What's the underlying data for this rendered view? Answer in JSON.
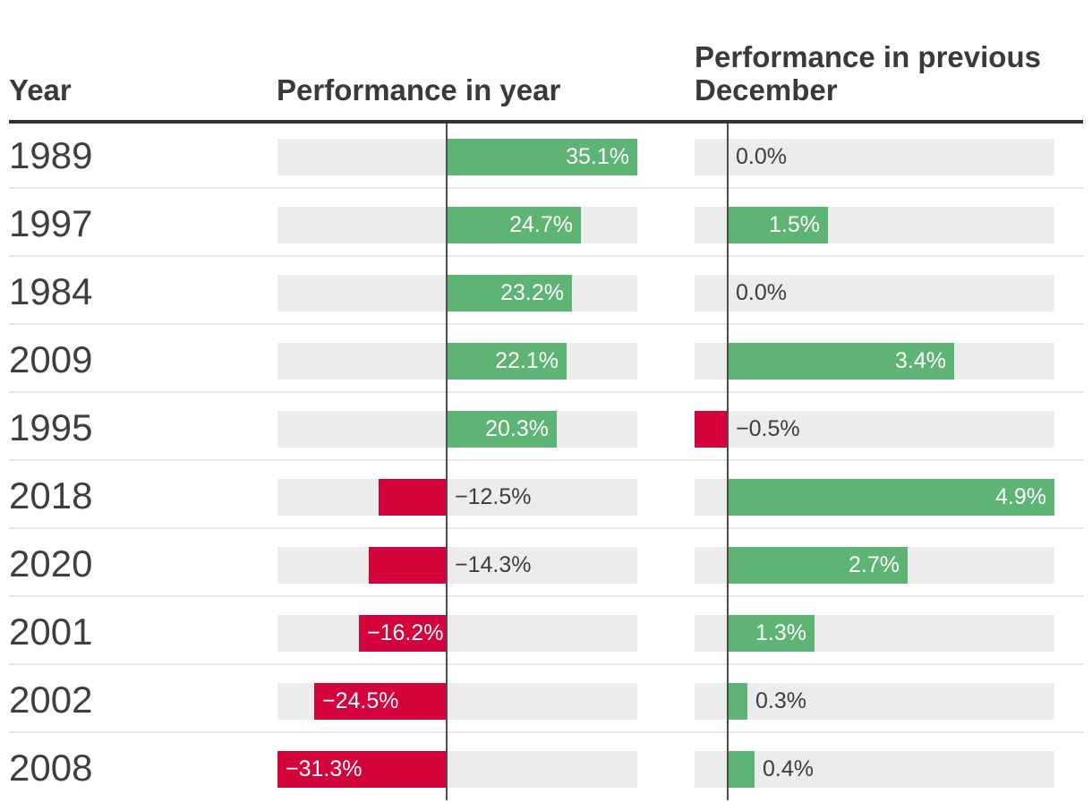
{
  "header": {
    "year": "Year",
    "col1": "Performance in year",
    "col2": "Performance in previous December"
  },
  "chart_data": {
    "type": "bar",
    "orientation": "horizontal",
    "title": "",
    "categories": [
      "1989",
      "1997",
      "1984",
      "2009",
      "1995",
      "2018",
      "2020",
      "2001",
      "2002",
      "2008"
    ],
    "series": [
      {
        "name": "Performance in year",
        "values": [
          35.1,
          24.7,
          23.2,
          22.1,
          20.3,
          -12.5,
          -14.3,
          -16.2,
          -24.5,
          -31.3
        ],
        "labels": [
          "35.1%",
          "24.7%",
          "23.2%",
          "22.1%",
          "20.3%",
          "−12.5%",
          "−14.3%",
          "−16.2%",
          "−24.5%",
          "−31.3%"
        ],
        "label_inside": [
          true,
          true,
          true,
          true,
          true,
          false,
          false,
          true,
          true,
          true
        ],
        "domain": [
          -31.3,
          35.1
        ]
      },
      {
        "name": "Performance in previous December",
        "values": [
          0.0,
          1.5,
          0.0,
          3.4,
          -0.5,
          4.9,
          2.7,
          1.3,
          0.3,
          0.4
        ],
        "labels": [
          "0.0%",
          "1.5%",
          "0.0%",
          "3.4%",
          "−0.5%",
          "4.9%",
          "2.7%",
          "1.3%",
          "0.3%",
          "0.4%"
        ],
        "label_inside": [
          false,
          true,
          false,
          true,
          false,
          true,
          true,
          true,
          false,
          false
        ],
        "domain": [
          -0.5,
          4.9
        ]
      }
    ],
    "colors": {
      "positive": "#5db475",
      "negative": "#d5033c",
      "track": "#ececec",
      "zero_line": "#4d4d4d",
      "separator": "#e8e8e8",
      "header_rule": "#323232",
      "text_dark": "#3d3d3d"
    },
    "legend": "none",
    "grid": "off",
    "value_unit": "%"
  }
}
